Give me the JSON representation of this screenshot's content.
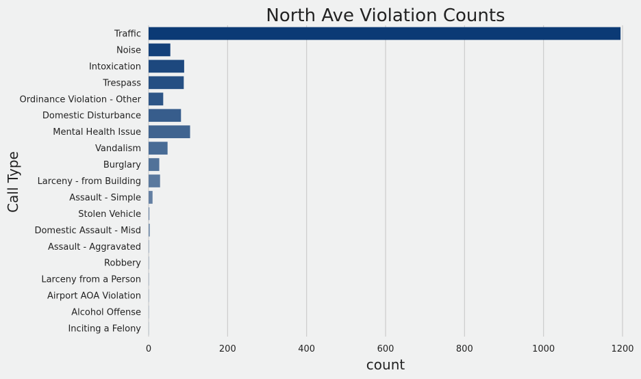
{
  "chart_data": {
    "type": "bar",
    "orientation": "horizontal",
    "title": "North Ave Violation Counts",
    "xlabel": "count",
    "ylabel": "Call Type",
    "xlim": [
      0,
      1200
    ],
    "xticks": [
      0,
      200,
      400,
      600,
      800,
      1000,
      1200
    ],
    "grid": "x",
    "legend": "none",
    "categories": [
      "Traffic",
      "Noise",
      "Intoxication",
      "Trespass",
      "Ordinance Violation - Other",
      "Domestic Disturbance",
      "Mental Health Issue",
      "Vandalism",
      "Burglary",
      "Larceny - from Building",
      "Assault - Simple",
      "Stolen Vehicle",
      "Domestic Assault - Misd",
      "Assault - Aggravated",
      "Robbery",
      "Larceny from a Person",
      "Airport AOA Violation",
      "Alcohol Offense",
      "Inciting a Felony"
    ],
    "values": [
      1195,
      55,
      90,
      89,
      37,
      82,
      105,
      48,
      27,
      29,
      10,
      2,
      3,
      1,
      1,
      1,
      1,
      1,
      1
    ],
    "colors": {
      "gradient_start": "#0b3a75",
      "gradient_end": "#a9b7c6",
      "grid": "#cbcccc",
      "background": "#f0f1f1",
      "text": "#222222"
    }
  }
}
